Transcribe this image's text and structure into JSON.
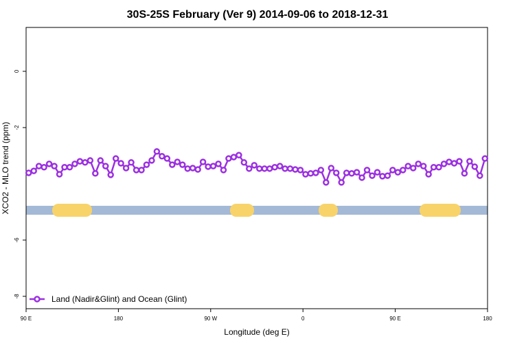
{
  "chart_data": {
    "type": "line",
    "title": "30S-25S February (Ver 9)   2014-09-06 to 2018-12-31",
    "x_label": "Longitude (deg E)",
    "y_label": "XCO2 - MLO trend (ppm)",
    "x": [
      92.5,
      97.5,
      102.5,
      107.5,
      112.5,
      117.5,
      122.5,
      127.5,
      132.5,
      137.5,
      142.5,
      147.5,
      152.5,
      157.5,
      162.5,
      167.5,
      172.5,
      177.5,
      182.5,
      187.5,
      192.5,
      197.5,
      202.5,
      207.5,
      212.5,
      217.5,
      222.5,
      227.5,
      232.5,
      237.5,
      242.5,
      247.5,
      252.5,
      257.5,
      262.5,
      267.5,
      272.5,
      277.5,
      282.5,
      287.5,
      292.5,
      297.5,
      302.5,
      307.5,
      312.5,
      317.5,
      322.5,
      327.5,
      332.5,
      337.5,
      342.5,
      347.5,
      352.5,
      357.5,
      362.5,
      367.5,
      372.5,
      377.5,
      382.5,
      387.5,
      392.5,
      397.5,
      402.5,
      407.5,
      412.5,
      417.5,
      422.5,
      427.5,
      432.5,
      437.5,
      442.5,
      447.5,
      452.5,
      457.5,
      462.5,
      467.5,
      472.5,
      477.5,
      482.5,
      487.5,
      492.5,
      497.5,
      502.5,
      507.5,
      512.5,
      517.5,
      522.5,
      527.5,
      532.5,
      537.5
    ],
    "series": [
      {
        "name": "Land (Nadir&Glint) and Ocean (Glint)",
        "color": "#9b30e0",
        "values": [
          -3.61,
          -3.54,
          -3.37,
          -3.41,
          -3.29,
          -3.37,
          -3.66,
          -3.41,
          -3.41,
          -3.29,
          -3.2,
          -3.24,
          -3.17,
          -3.63,
          -3.17,
          -3.37,
          -3.68,
          -3.1,
          -3.27,
          -3.44,
          -3.24,
          -3.51,
          -3.51,
          -3.32,
          -3.17,
          -2.85,
          -3.02,
          -3.1,
          -3.32,
          -3.22,
          -3.32,
          -3.46,
          -3.44,
          -3.49,
          -3.22,
          -3.39,
          -3.37,
          -3.29,
          -3.51,
          -3.1,
          -3.05,
          -2.98,
          -3.24,
          -3.46,
          -3.34,
          -3.46,
          -3.46,
          -3.46,
          -3.41,
          -3.37,
          -3.46,
          -3.46,
          -3.49,
          -3.51,
          -3.66,
          -3.63,
          -3.61,
          -3.51,
          -3.95,
          -3.44,
          -3.61,
          -3.95,
          -3.61,
          -3.63,
          -3.59,
          -3.78,
          -3.51,
          -3.71,
          -3.59,
          -3.73,
          -3.71,
          -3.51,
          -3.59,
          -3.51,
          -3.37,
          -3.44,
          -3.29,
          -3.37,
          -3.66,
          -3.41,
          -3.41,
          -3.29,
          -3.22,
          -3.27,
          -3.2,
          -3.63,
          -3.2,
          -3.39,
          -3.71,
          -3.1
        ]
      }
    ],
    "xlim": [
      90,
      540
    ],
    "xticks": [
      {
        "value": 90,
        "label": "90 E"
      },
      {
        "value": 180,
        "label": "180"
      },
      {
        "value": 270,
        "label": "90 W"
      },
      {
        "value": 360,
        "label": "0"
      },
      {
        "value": 450,
        "label": "90 E"
      },
      {
        "value": 540,
        "label": "180"
      }
    ],
    "ylim": [
      -8.44,
      1.56
    ],
    "yticks": [
      0,
      -2,
      -6,
      -8
    ],
    "legend": "bottom-left"
  }
}
